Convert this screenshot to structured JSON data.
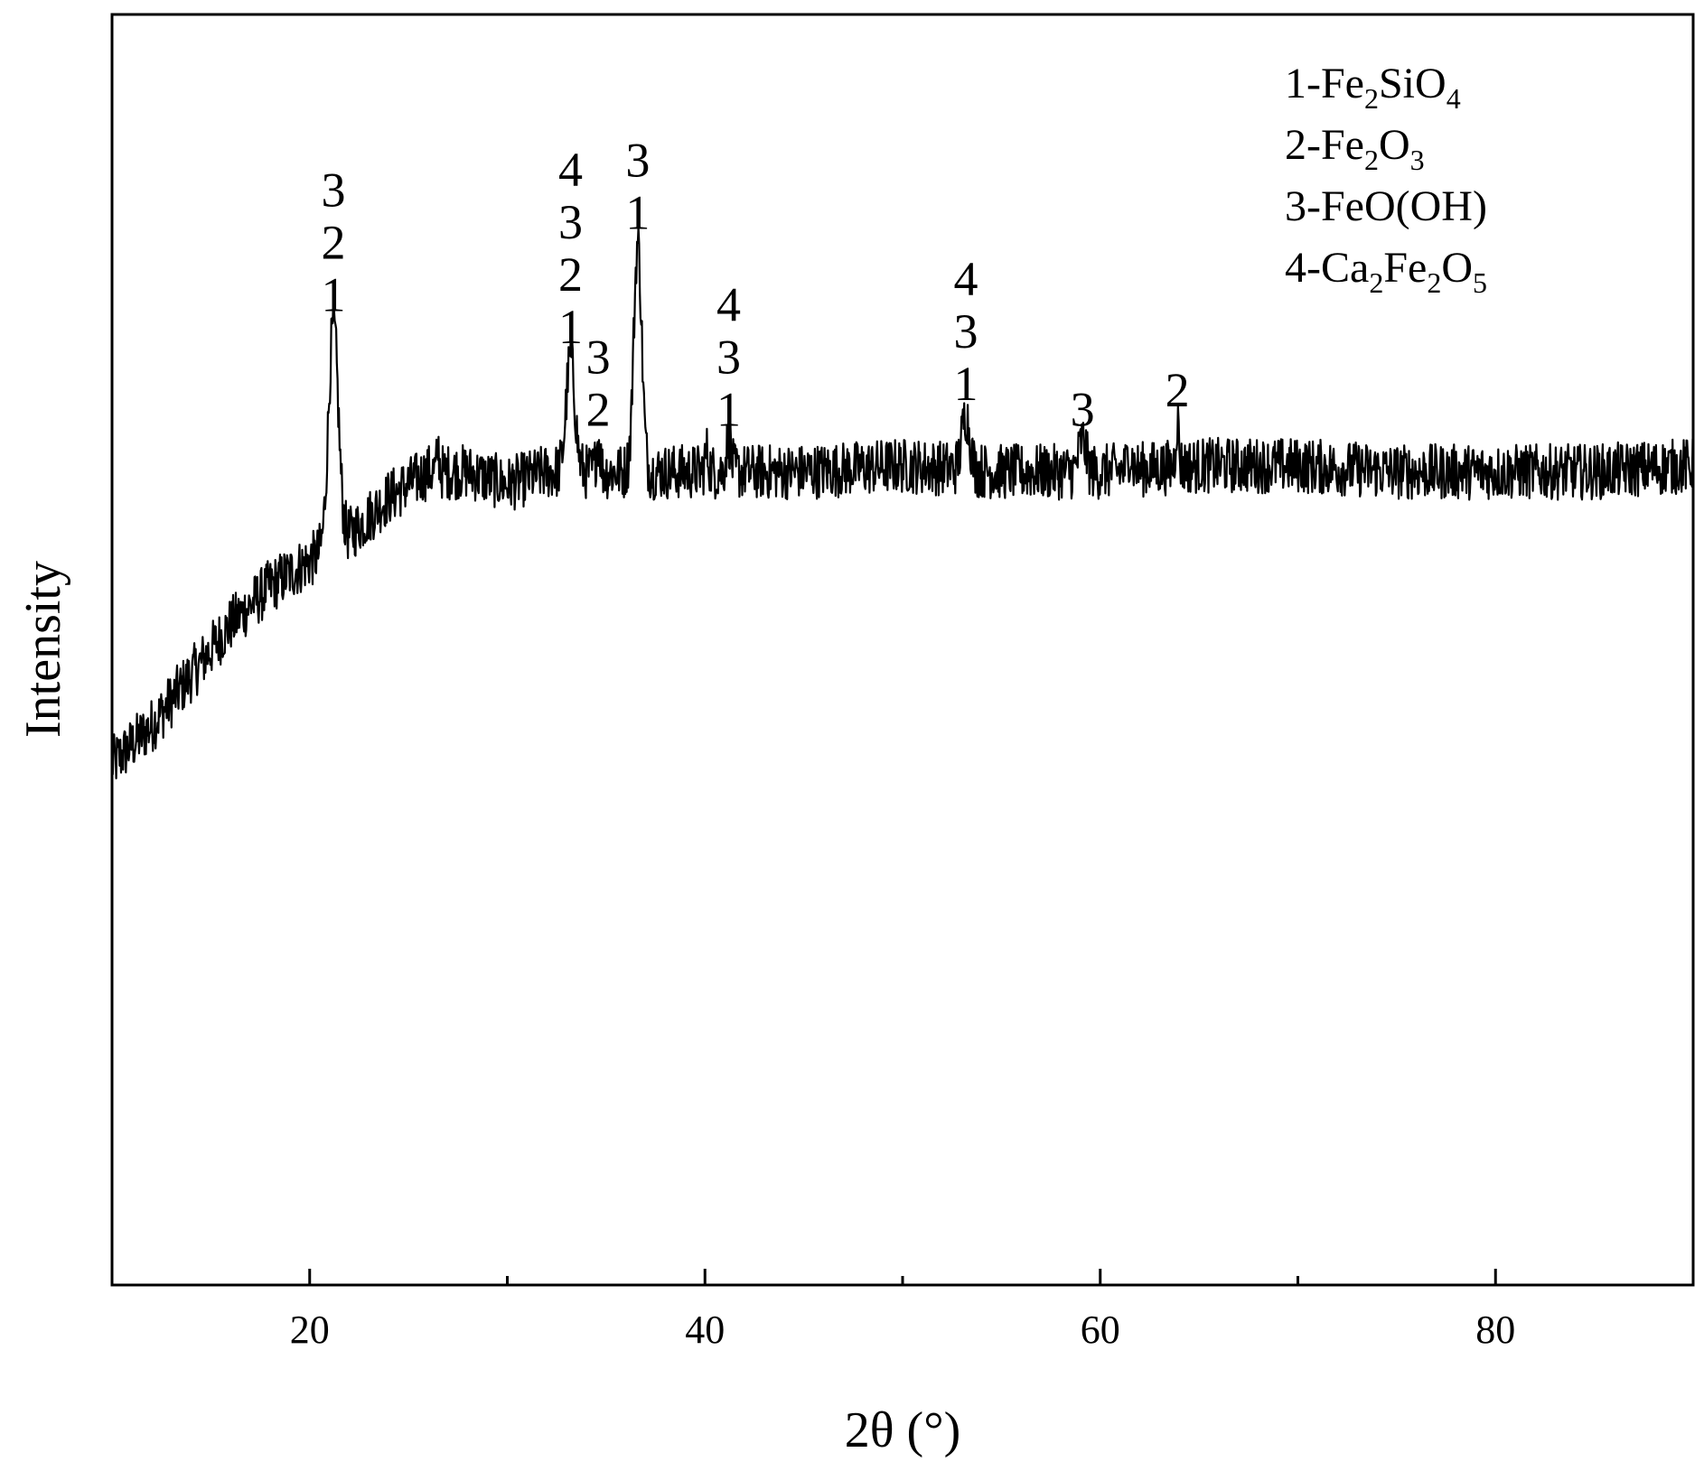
{
  "chart_data": {
    "type": "line",
    "title": "",
    "xlabel": "2θ (°)",
    "ylabel": "Intensity",
    "xlim": [
      10,
      90
    ],
    "ylim": [
      0,
      100
    ],
    "x_ticks": [
      20,
      40,
      60,
      80
    ],
    "x_minor_ticks": [
      30,
      50,
      70
    ],
    "y_ticks_shown": false,
    "grid": false,
    "line_color": "#000000",
    "legend": {
      "placement": "top-right",
      "entries": [
        {
          "prefix": "1-",
          "parts": [
            [
              "Fe",
              ""
            ],
            [
              "2",
              "sub"
            ],
            [
              "SiO",
              ""
            ],
            [
              "4",
              "sub"
            ]
          ]
        },
        {
          "prefix": "2-",
          "parts": [
            [
              "Fe",
              ""
            ],
            [
              "2",
              "sub"
            ],
            [
              "O",
              ""
            ],
            [
              "3",
              "sub"
            ]
          ]
        },
        {
          "prefix": "3-",
          "parts": [
            [
              "FeO(OH)",
              ""
            ]
          ]
        },
        {
          "prefix": "4-",
          "parts": [
            [
              "Ca",
              ""
            ],
            [
              "2",
              "sub"
            ],
            [
              "Fe",
              ""
            ],
            [
              "2",
              "sub"
            ],
            [
              "O",
              ""
            ],
            [
              "5",
              "sub"
            ]
          ]
        }
      ]
    },
    "background_profile": [
      [
        10,
        41
      ],
      [
        12,
        44
      ],
      [
        14,
        48
      ],
      [
        16,
        52
      ],
      [
        18,
        55
      ],
      [
        20,
        57
      ],
      [
        22,
        59
      ],
      [
        24,
        62
      ],
      [
        26,
        64
      ],
      [
        28,
        64
      ],
      [
        30,
        63
      ],
      [
        32,
        64
      ],
      [
        34,
        64
      ],
      [
        36,
        64
      ],
      [
        40,
        64
      ],
      [
        45,
        64
      ],
      [
        50,
        64.5
      ],
      [
        55,
        64
      ],
      [
        60,
        64
      ],
      [
        65,
        64.5
      ],
      [
        70,
        64.5
      ],
      [
        75,
        64
      ],
      [
        80,
        64
      ],
      [
        85,
        64
      ],
      [
        90,
        64.5
      ]
    ],
    "peaks": [
      {
        "x": 21.2,
        "y": 75.5,
        "width": 0.25,
        "labels": [
          "3",
          "2",
          "1"
        ]
      },
      {
        "x": 26.5,
        "y": 65.8,
        "width": 0.06,
        "labels": []
      },
      {
        "x": 33.2,
        "y": 73.0,
        "width": 0.22,
        "labels": [
          "4",
          "3",
          "2",
          "1"
        ]
      },
      {
        "x": 34.6,
        "y": 66.5,
        "width": 0.1,
        "labels": [
          "3",
          "2"
        ]
      },
      {
        "x": 36.6,
        "y": 82.0,
        "width": 0.2,
        "labels": [
          "3",
          "1"
        ]
      },
      {
        "x": 40.1,
        "y": 65.5,
        "width": 0.1,
        "labels": []
      },
      {
        "x": 41.2,
        "y": 66.5,
        "width": 0.12,
        "labels": [
          "4",
          "3",
          "1"
        ]
      },
      {
        "x": 53.2,
        "y": 68.5,
        "width": 0.2,
        "labels": [
          "4",
          "3",
          "1"
        ]
      },
      {
        "x": 59.1,
        "y": 66.5,
        "width": 0.18,
        "labels": [
          "3"
        ]
      },
      {
        "x": 61.5,
        "y": 65.5,
        "width": 0.12,
        "labels": []
      },
      {
        "x": 63.9,
        "y": 68.0,
        "width": 0.08,
        "labels": [
          "2"
        ]
      }
    ],
    "noise_amplitude": 2.2
  }
}
